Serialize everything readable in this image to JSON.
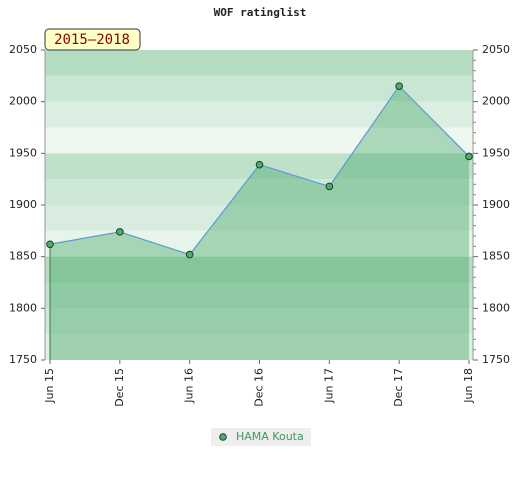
{
  "chart_data": {
    "type": "line",
    "title": "WOF ratinglist",
    "period_label": "2015–2018",
    "categories": [
      "Jun 15",
      "Dec 15",
      "Jun 16",
      "Dec 16",
      "Jun 17",
      "Dec 17",
      "Jun 18"
    ],
    "series": [
      {
        "name": "HAMA Kouta",
        "color": "#5b9bd5",
        "marker_color": "#4caf6a",
        "values": [
          1862,
          1874,
          1852,
          1939,
          1918,
          2015,
          1947
        ]
      }
    ],
    "ylim": [
      1750,
      2050
    ],
    "yticks": [
      1750,
      1800,
      1850,
      1900,
      1950,
      2000,
      2050
    ],
    "y2lim": [
      1750,
      2050
    ],
    "y2ticks": [
      1750,
      1800,
      1850,
      1900,
      1950,
      2000,
      2050
    ],
    "area_fill": "#2f9a55"
  }
}
